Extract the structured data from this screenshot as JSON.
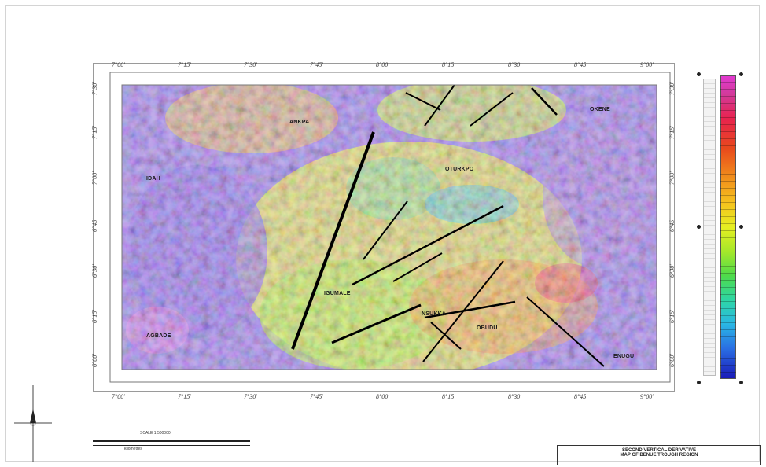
{
  "map": {
    "top_ticks": [
      "7°00'",
      "7°15'",
      "7°30'",
      "7°45'",
      "8°00'",
      "8°15'",
      "8°30'",
      "8°45'",
      "9°00'"
    ],
    "bottom_ticks": [
      "7°00'",
      "7°15'",
      "7°30'",
      "7°45'",
      "8°00'",
      "8°15'",
      "8°30'",
      "8°45'",
      "9°00'"
    ],
    "left_ticks": [
      "7°30'",
      "7°15'",
      "7°00'",
      "6°45'",
      "6°30'",
      "6°15'",
      "6°00'"
    ],
    "right_ticks": [
      "7°30'",
      "7°15'",
      "7°00'",
      "6°45'",
      "6°30'",
      "6°15'",
      "6°00'"
    ],
    "place_labels": [
      "ANKPA",
      "IDAH",
      "OTURKPO",
      "OKENE",
      "IGUMALE",
      "OBUDU",
      "AGBADE",
      "ENUGU",
      "NSUKKA"
    ],
    "colors": {
      "high": "#e23ad0",
      "mid": "#e6ef22",
      "low": "#1a1ab8",
      "background_purple": "#8a6ad8",
      "lineament": "#000000"
    }
  },
  "legend": {
    "colormap": [
      "#e23ad0",
      "#e8234e",
      "#f08a1c",
      "#f5c21e",
      "#e6ef22",
      "#4fdb4a",
      "#2ed6a4",
      "#2ab8e4",
      "#1a1ab8"
    ]
  },
  "scale": {
    "title": "SCALE 1:500000",
    "subtitle": "kilometres"
  },
  "title_block": {
    "line1": "SECOND VERTICAL DERIVATIVE",
    "line2": "MAP OF BENUE TROUGH REGION"
  }
}
